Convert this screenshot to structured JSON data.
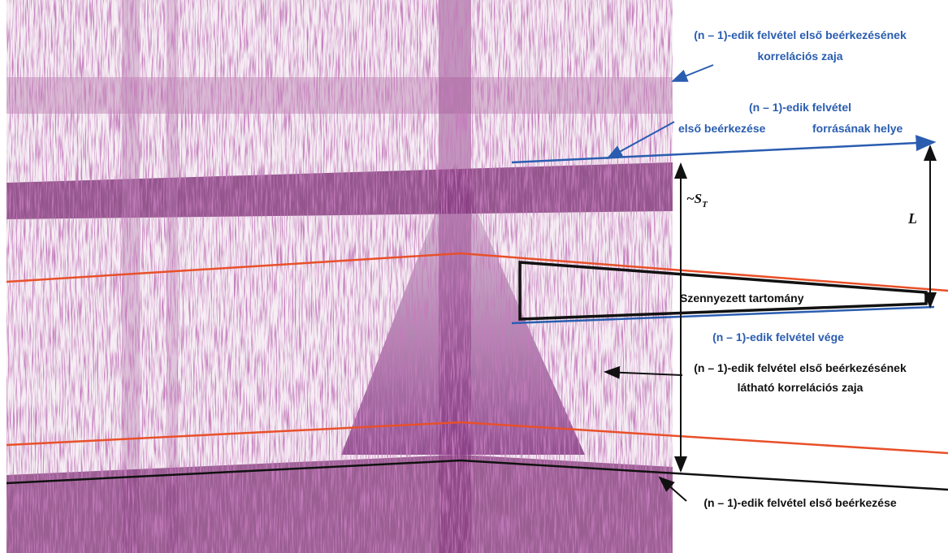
{
  "annotations": {
    "noise_top": [
      "(n – 1)-edik felvétel első beérkezésének",
      "korrelációs zaja"
    ],
    "shot_common": "(n – 1)-edik felvétel",
    "first_arrival_top": "első beérkezése",
    "source_location": "forrásának helye",
    "st_label": "~S",
    "st_sub": "T",
    "l_label": "L",
    "contaminated": "Szennyezett tartomány",
    "record_end": "(n – 1)-edik felvétel vége",
    "noise_visible": [
      "(n – 1)-edik felvétel első beérkezésének",
      "látható korrelációs zaja"
    ],
    "first_arrival_bottom": "(n – 1)-edik felvétel első beérkezése"
  }
}
